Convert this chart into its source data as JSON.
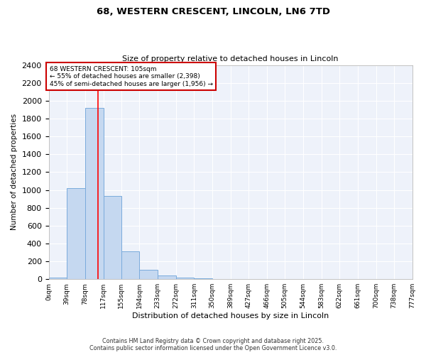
{
  "title": "68, WESTERN CRESCENT, LINCOLN, LN6 7TD",
  "subtitle": "Size of property relative to detached houses in Lincoln",
  "xlabel": "Distribution of detached houses by size in Lincoln",
  "ylabel": "Number of detached properties",
  "bar_values": [
    15,
    1020,
    1920,
    930,
    310,
    105,
    45,
    20,
    10,
    0,
    0,
    0,
    0,
    0,
    0,
    0,
    0,
    0,
    0,
    0
  ],
  "bin_edges": [
    0,
    39,
    78,
    117,
    155,
    194,
    233,
    272,
    311,
    350,
    389,
    427,
    466,
    505,
    544,
    583,
    622,
    661,
    700,
    738,
    777
  ],
  "bar_color": "#c5d8f0",
  "bar_edge_color": "#7aabdc",
  "ylim": [
    0,
    2400
  ],
  "yticks": [
    0,
    200,
    400,
    600,
    800,
    1000,
    1200,
    1400,
    1600,
    1800,
    2000,
    2200,
    2400
  ],
  "red_line_x": 105,
  "annotation_text": "68 WESTERN CRESCENT: 105sqm\n← 55% of detached houses are smaller (2,398)\n45% of semi-detached houses are larger (1,956) →",
  "annotation_box_color": "#ffffff",
  "annotation_box_edge": "#cc0000",
  "bg_color": "#eef2fa",
  "grid_color": "#ffffff",
  "footer_line1": "Contains HM Land Registry data © Crown copyright and database right 2025.",
  "footer_line2": "Contains public sector information licensed under the Open Government Licence v3.0."
}
